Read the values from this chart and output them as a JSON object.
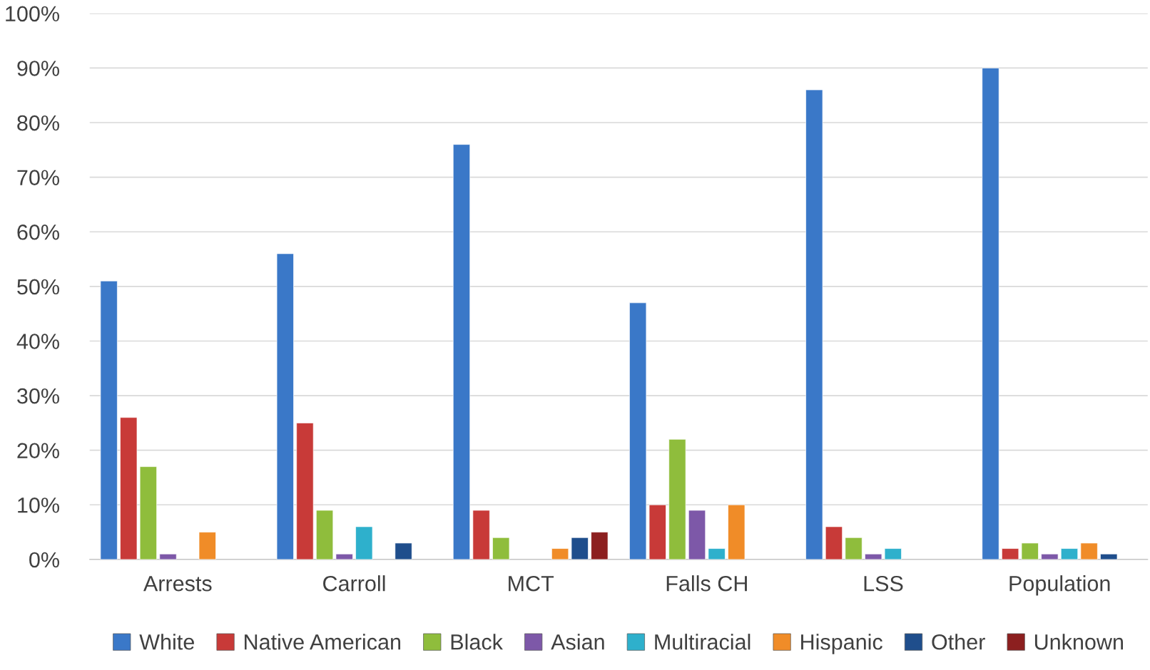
{
  "chart_data": {
    "type": "bar",
    "categories": [
      "Arrests",
      "Carroll",
      "MCT",
      "Falls CH",
      "LSS",
      "Population"
    ],
    "series": [
      {
        "name": "White",
        "color": "#3a78c8",
        "values": [
          51,
          56,
          76,
          47,
          86,
          90
        ]
      },
      {
        "name": "Native American",
        "color": "#c83a38",
        "values": [
          26,
          25,
          9,
          10,
          6,
          2
        ]
      },
      {
        "name": "Black",
        "color": "#8fbd3c",
        "values": [
          17,
          9,
          4,
          22,
          4,
          3
        ]
      },
      {
        "name": "Asian",
        "color": "#7d58a8",
        "values": [
          1,
          1,
          null,
          9,
          1,
          1
        ]
      },
      {
        "name": "Multiracial",
        "color": "#2eb0cc",
        "values": [
          null,
          6,
          null,
          2,
          2,
          2
        ]
      },
      {
        "name": "Hispanic",
        "color": "#f08c28",
        "values": [
          5,
          null,
          2,
          10,
          null,
          3
        ]
      },
      {
        "name": "Other",
        "color": "#1f4e8c",
        "values": [
          null,
          3,
          4,
          null,
          null,
          1
        ]
      },
      {
        "name": "Unknown",
        "color": "#8c1f1f",
        "values": [
          null,
          null,
          5,
          null,
          null,
          null
        ]
      }
    ],
    "ylim": [
      0,
      100
    ],
    "yticks": [
      {
        "value": 0,
        "label": "0%"
      },
      {
        "value": 10,
        "label": "10%"
      },
      {
        "value": 20,
        "label": "20%"
      },
      {
        "value": 30,
        "label": "30%"
      },
      {
        "value": 40,
        "label": "40%"
      },
      {
        "value": 50,
        "label": "50%"
      },
      {
        "value": 60,
        "label": "60%"
      },
      {
        "value": 70,
        "label": "70%"
      },
      {
        "value": 80,
        "label": "80%"
      },
      {
        "value": 90,
        "label": "90%"
      },
      {
        "value": 100,
        "label": "100%"
      }
    ],
    "grid": "y",
    "legend": "bottom"
  }
}
